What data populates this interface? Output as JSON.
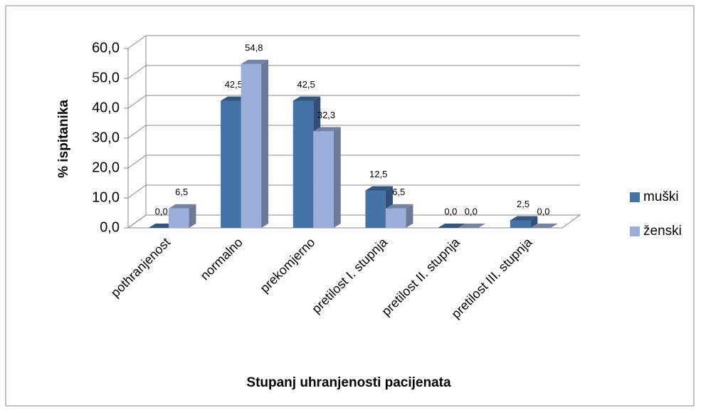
{
  "chart_data": {
    "type": "bar3d",
    "x_label": "Stupanj uhranjenosti pacijenata",
    "y_label": "% ispitanika",
    "categories": [
      "pothranjenost",
      "normalno",
      "prekomjerno",
      "pretilost I. stupnja",
      "pretilost II. stupnja",
      "pretilost III. stupnja"
    ],
    "series": [
      {
        "name": "muški",
        "color": "#4572a7",
        "values": [
          0,
          42.5,
          42.5,
          12.5,
          0,
          2.5
        ],
        "value_labels": [
          "0,0",
          "42,5",
          "42,5",
          "12,5",
          "0,0",
          "2,5"
        ]
      },
      {
        "name": "ženski",
        "color": "#9aaed9",
        "values": [
          6.5,
          54.8,
          32.3,
          6.5,
          0,
          0
        ],
        "value_labels": [
          "6,5",
          "54,8",
          "32,3",
          "6,5",
          "0,0",
          "0,0"
        ]
      }
    ],
    "ylim": [
      0,
      60
    ],
    "yticks": [
      {
        "value": 0,
        "label": "0,0"
      },
      {
        "value": 10,
        "label": "10,0"
      },
      {
        "value": 20,
        "label": "20,0"
      },
      {
        "value": 30,
        "label": "30,0"
      },
      {
        "value": 40,
        "label": "40,0"
      },
      {
        "value": 50,
        "label": "50,0"
      },
      {
        "value": 60,
        "label": "60,0"
      }
    ],
    "grid": true,
    "legend": "right"
  }
}
